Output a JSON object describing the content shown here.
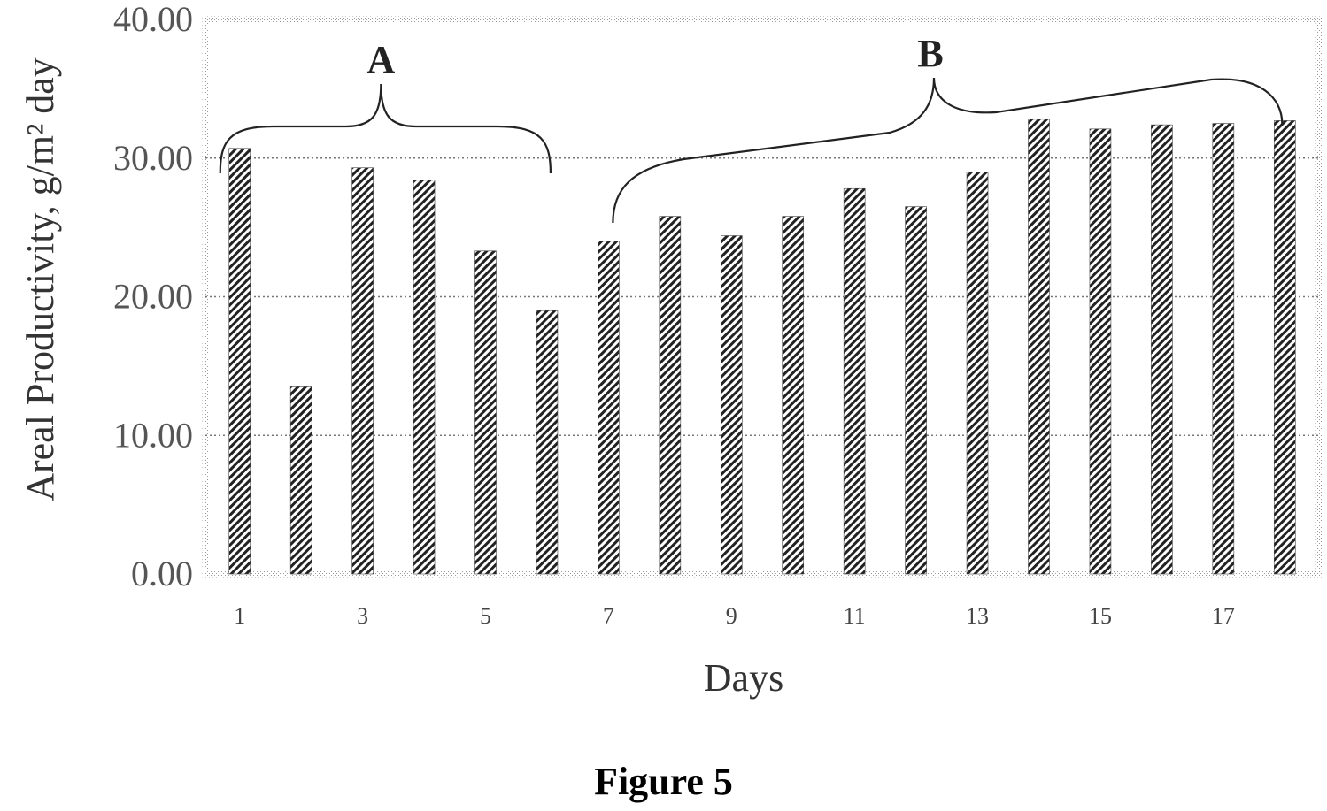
{
  "figure_caption": "Figure 5",
  "chart_data": {
    "type": "bar",
    "categories": [
      "1",
      "2",
      "3",
      "4",
      "5",
      "6",
      "7",
      "8",
      "9",
      "10",
      "11",
      "12",
      "13",
      "14",
      "15",
      "16",
      "17",
      "18"
    ],
    "x_tick_labels": [
      "1",
      "3",
      "5",
      "7",
      "9",
      "11",
      "13",
      "15",
      "17"
    ],
    "values": [
      30.7,
      13.5,
      29.3,
      28.4,
      23.3,
      19.0,
      24.0,
      25.8,
      24.4,
      25.8,
      27.8,
      26.5,
      29.0,
      32.8,
      32.1,
      32.4,
      32.5,
      32.7
    ],
    "ylabel": "Areal Productivity, g/m² day",
    "xlabel": "Days",
    "ylim": [
      0,
      40
    ],
    "y_ticks": [
      "0.00",
      "10.00",
      "20.00",
      "30.00",
      "40.00"
    ],
    "grid": "horizontal-dotted",
    "bar_fill": "diagonal-hatch",
    "annotations": [
      {
        "label": "A",
        "from_day": 1,
        "to_day": 6
      },
      {
        "label": "B",
        "from_day": 7,
        "to_day": 18
      }
    ]
  }
}
